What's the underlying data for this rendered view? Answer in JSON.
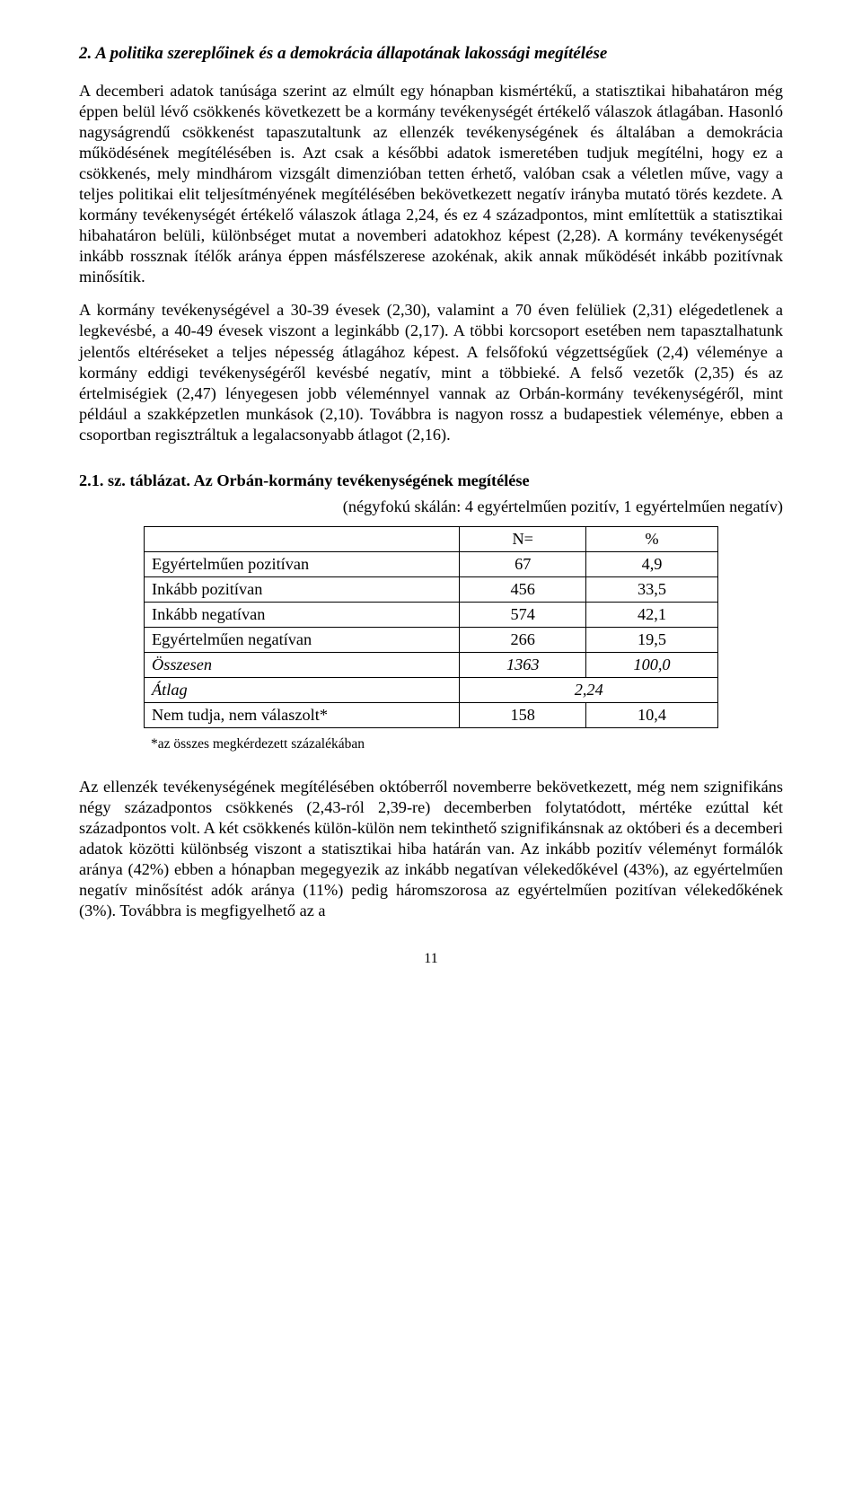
{
  "section_title": "2. A politika szereplőinek és a demokrácia állapotának lakossági megítélése",
  "paragraphs": {
    "p1": "A decemberi adatok tanúsága szerint az elmúlt egy hónapban kismértékű, a statisztikai hibahatáron még éppen belül lévő csökkenés következett be a kormány tevékenységét értékelő válaszok átlagában. Hasonló nagyságrendű csökkenést tapaszutaltunk az ellenzék tevékenységének és általában a demokrácia működésének megítélésében is. Azt csak a későbbi adatok ismeretében tudjuk megítélni, hogy ez a csökkenés, mely mindhárom vizsgált dimenzióban tetten érhető, valóban csak a véletlen műve, vagy a teljes politikai elit teljesítményének megítélésében bekövetkezett negatív irányba mutató törés kezdete. A kormány tevékenységét értékelő válaszok átlaga 2,24, és ez 4 századpontos, mint említettük a statisztikai hibahatáron belüli, különbséget mutat a novemberi adatokhoz képest (2,28). A kormány tevékenységét inkább rossznak ítélők aránya éppen másfélszerese azokénak, akik annak működését inkább pozitívnak minősítik.",
    "p2": "A kormány tevékenységével a 30-39 évesek (2,30), valamint a 70 éven felüliek (2,31) elégedetlenek a legkevésbé, a 40-49 évesek viszont a leginkább (2,17). A többi korcsoport esetében nem tapasztalhatunk jelentős eltéréseket a teljes népesség átlagához képest. A felsőfokú végzettségűek (2,4) véleménye a kormány eddigi tevékenységéről kevésbé negatív, mint a többieké. A felső vezetők (2,35) és az értelmiségiek (2,47) lényegesen jobb véleménnyel vannak az Orbán-kormány tevékenységéről, mint például a szakképzetlen munkások (2,10). Továbbra is nagyon rossz a budapestiek véleménye, ebben a csoportban regisztráltuk a legalacsonyabb átlagot (2,16).",
    "p3": "Az ellenzék tevékenységének megítélésében októberről novemberre bekövetkezett, még nem szignifikáns négy századpontos csökkenés (2,43-ról 2,39-re) decemberben folytatódott, mértéke ezúttal két századpontos volt. A két csökkenés külön-külön nem tekinthető szignifikánsnak az októberi és a decemberi adatok közötti különbség viszont a statisztikai hiba határán van. Az inkább pozitív véleményt formálók aránya (42%) ebben a hónapban megegyezik az inkább negatívan vélekedőkével (43%), az egyértelműen negatív minősítést adók aránya (11%) pedig háromszorosa az egyértelműen pozitívan vélekedőkének (3%). Továbbra is megfigyelhető az a"
  },
  "table": {
    "title_prefix": "2.1. sz. táblázat. ",
    "title_bold": "Az Orbán-kormány tevékenységének megítélése",
    "subtitle": "(négyfokú skálán: 4 egyértelműen pozitív, 1 egyértelműen negatív)",
    "header_n": "N=",
    "header_pct": "%",
    "rows": [
      {
        "label": "Egyértelműen pozitívan",
        "n": "67",
        "pct": "4,9"
      },
      {
        "label": "Inkább pozitívan",
        "n": "456",
        "pct": "33,5"
      },
      {
        "label": "Inkább negatívan",
        "n": "574",
        "pct": "42,1"
      },
      {
        "label": "Egyértelműen negatívan",
        "n": "266",
        "pct": "19,5"
      }
    ],
    "total_label": "Összesen",
    "total_n": "1363",
    "total_pct": "100,0",
    "avg_label": "Átlag",
    "avg_value": "2,24",
    "na_label": "Nem tudja, nem válaszolt*",
    "na_n": "158",
    "na_pct": "10,4",
    "footnote": "*az összes megkérdezett százalékában"
  },
  "page_number": "11"
}
